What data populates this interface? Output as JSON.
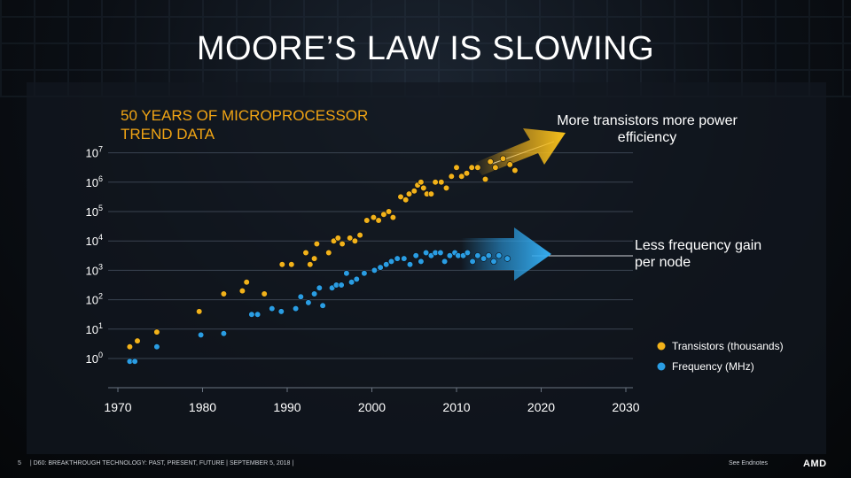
{
  "slide": {
    "title": "MOORE’S LAW IS SLOWING",
    "subtitle": "50 YEARS OF MICROPROCESSOR TREND DATA",
    "annotation_up": "More transistors more power efficiency",
    "annotation_right": "Less frequency gain per node",
    "footer_page": "5",
    "footer_text": "| D60: BREAKTHROUGH TECHNOLOGY: PAST, PRESENT, FUTURE | SEPTEMBER 5, 2018 |",
    "footer_right": "See Endnotes",
    "logo": "AMD"
  },
  "colors": {
    "transistors": "#f2b21a",
    "frequency": "#2a9de3",
    "text": "#ffffff",
    "accent": "#f0a414"
  },
  "chart_data": {
    "type": "scatter",
    "title": "50 YEARS OF MICROPROCESSOR TREND DATA",
    "xlabel": "",
    "ylabel": "",
    "xlim": [
      1965,
      2035
    ],
    "ylim": [
      0,
      7
    ],
    "x_ticks": [
      {
        "v": 1970,
        "label": "1970"
      },
      {
        "v": 1980,
        "label": "1980"
      },
      {
        "v": 1990,
        "label": "1990"
      },
      {
        "v": 2000,
        "label": "2000"
      },
      {
        "v": 2010,
        "label": "2010"
      },
      {
        "v": 2020,
        "label": "2020"
      },
      {
        "v": 2030,
        "label": "2030"
      }
    ],
    "y_ticks": [
      {
        "v": 0,
        "base": "10",
        "exp": "0"
      },
      {
        "v": 1,
        "base": "10",
        "exp": "1"
      },
      {
        "v": 2,
        "base": "10",
        "exp": "2"
      },
      {
        "v": 3,
        "base": "10",
        "exp": "3"
      },
      {
        "v": 4,
        "base": "10",
        "exp": "4"
      },
      {
        "v": 5,
        "base": "10",
        "exp": "5"
      },
      {
        "v": 6,
        "base": "10",
        "exp": "6"
      },
      {
        "v": 7,
        "base": "10",
        "exp": "7"
      }
    ],
    "legend": [
      {
        "name": "Transistors (thousands)",
        "color": "#f2b21a"
      },
      {
        "name": "Frequency (MHz)",
        "color": "#2a9de3"
      }
    ],
    "series": [
      {
        "name": "Transistors (thousands)",
        "points": [
          [
            1971.4,
            0.4
          ],
          [
            1972.3,
            0.6
          ],
          [
            1974.6,
            0.9
          ],
          [
            1979.6,
            1.6
          ],
          [
            1982.5,
            2.2
          ],
          [
            1984.7,
            2.3
          ],
          [
            1985.2,
            2.6
          ],
          [
            1987.3,
            2.2
          ],
          [
            1989.4,
            3.2
          ],
          [
            1990.5,
            3.2
          ],
          [
            1992.2,
            3.6
          ],
          [
            1992.7,
            3.2
          ],
          [
            1993.2,
            3.4
          ],
          [
            1993.5,
            3.9
          ],
          [
            1994.9,
            3.6
          ],
          [
            1995.5,
            4.0
          ],
          [
            1996.0,
            4.1
          ],
          [
            1996.5,
            3.9
          ],
          [
            1997.4,
            4.1
          ],
          [
            1998.0,
            4.0
          ],
          [
            1998.6,
            4.2
          ],
          [
            1999.4,
            4.7
          ],
          [
            2000.2,
            4.8
          ],
          [
            2000.8,
            4.7
          ],
          [
            2001.4,
            4.9
          ],
          [
            2002.0,
            5.0
          ],
          [
            2002.5,
            4.8
          ],
          [
            2003.4,
            5.5
          ],
          [
            2004.0,
            5.4
          ],
          [
            2004.4,
            5.6
          ],
          [
            2005.0,
            5.7
          ],
          [
            2005.4,
            5.9
          ],
          [
            2005.8,
            6.0
          ],
          [
            2006.1,
            5.8
          ],
          [
            2006.5,
            5.6
          ],
          [
            2007.0,
            5.6
          ],
          [
            2007.5,
            6.0
          ],
          [
            2008.2,
            6.0
          ],
          [
            2008.8,
            5.8
          ],
          [
            2009.4,
            6.2
          ],
          [
            2010.0,
            6.5
          ],
          [
            2010.6,
            6.2
          ],
          [
            2011.2,
            6.3
          ],
          [
            2011.8,
            6.5
          ],
          [
            2012.5,
            6.5
          ],
          [
            2013.4,
            6.1
          ],
          [
            2014.0,
            6.7
          ],
          [
            2014.6,
            6.5
          ],
          [
            2015.5,
            6.8
          ],
          [
            2016.3,
            6.6
          ],
          [
            2016.9,
            6.4
          ]
        ]
      },
      {
        "name": "Frequency (MHz)",
        "points": [
          [
            1971.4,
            -0.1
          ],
          [
            1972.0,
            -0.1
          ],
          [
            1974.6,
            0.4
          ],
          [
            1979.8,
            0.8
          ],
          [
            1982.5,
            0.85
          ],
          [
            1985.8,
            1.5
          ],
          [
            1986.5,
            1.5
          ],
          [
            1988.2,
            1.7
          ],
          [
            1989.3,
            1.6
          ],
          [
            1991.0,
            1.7
          ],
          [
            1991.6,
            2.1
          ],
          [
            1992.5,
            1.9
          ],
          [
            1993.2,
            2.2
          ],
          [
            1993.8,
            2.4
          ],
          [
            1994.2,
            1.8
          ],
          [
            1995.3,
            2.4
          ],
          [
            1995.8,
            2.5
          ],
          [
            1996.4,
            2.5
          ],
          [
            1997.0,
            2.9
          ],
          [
            1997.6,
            2.6
          ],
          [
            1998.2,
            2.7
          ],
          [
            1999.1,
            2.9
          ],
          [
            2000.3,
            3.0
          ],
          [
            2001.0,
            3.1
          ],
          [
            2001.7,
            3.2
          ],
          [
            2002.3,
            3.3
          ],
          [
            2003.0,
            3.4
          ],
          [
            2003.8,
            3.4
          ],
          [
            2004.5,
            3.2
          ],
          [
            2005.2,
            3.5
          ],
          [
            2005.8,
            3.3
          ],
          [
            2006.4,
            3.6
          ],
          [
            2007.0,
            3.5
          ],
          [
            2007.5,
            3.6
          ],
          [
            2008.1,
            3.6
          ],
          [
            2008.6,
            3.3
          ],
          [
            2009.2,
            3.5
          ],
          [
            2009.8,
            3.6
          ],
          [
            2010.2,
            3.5
          ],
          [
            2010.8,
            3.5
          ],
          [
            2011.3,
            3.6
          ],
          [
            2011.9,
            3.3
          ],
          [
            2012.5,
            3.5
          ],
          [
            2013.2,
            3.4
          ],
          [
            2013.8,
            3.5
          ],
          [
            2014.4,
            3.3
          ],
          [
            2015.0,
            3.5
          ],
          [
            2016.0,
            3.4
          ]
        ]
      }
    ],
    "annotations": [
      "More transistors more power efficiency",
      "Less frequency gain per node"
    ]
  }
}
